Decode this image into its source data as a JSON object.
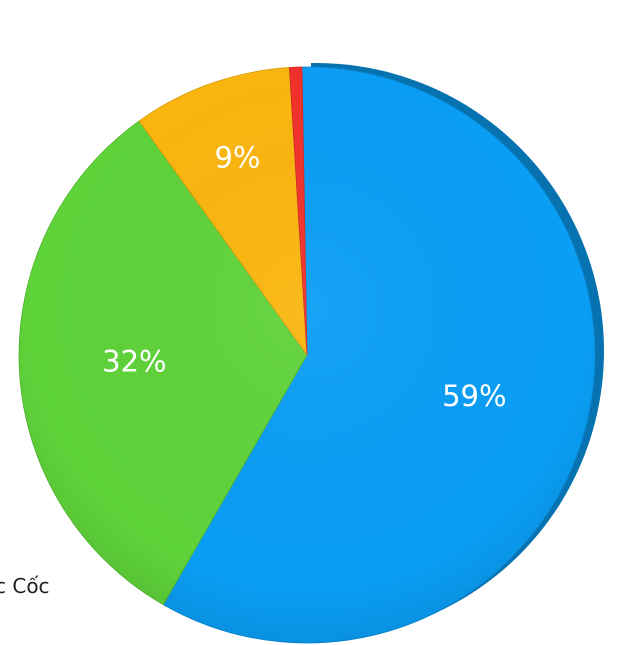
{
  "chart_data": {
    "type": "pie",
    "title": "",
    "slices": [
      {
        "label": "59%",
        "value": 59,
        "color": "#0a9ef5"
      },
      {
        "label": "32%",
        "value": 32,
        "color": "#5fd33a"
      },
      {
        "label": "9%",
        "value": 9,
        "color": "#fbb60e"
      },
      {
        "label": "",
        "value": 0.7,
        "color": "#f2312b"
      }
    ],
    "legend": {
      "placement": "bottom-left",
      "entries": [
        "c Cốc"
      ]
    }
  }
}
